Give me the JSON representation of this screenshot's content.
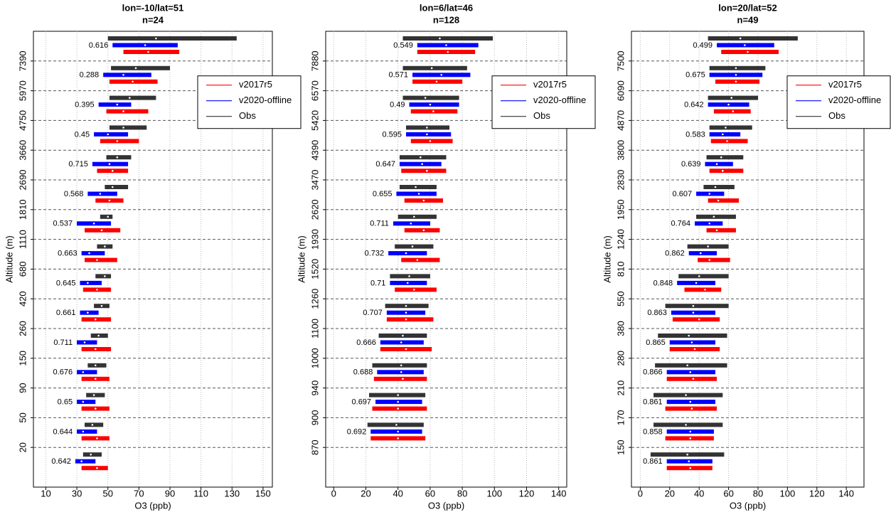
{
  "chart_data": [
    {
      "type": "range",
      "title": "lon=-10/lat=51",
      "subtitle": "n=24",
      "x_label": "O3 (ppb)",
      "y_label": "Altitude (m)",
      "xlim": [
        2,
        156
      ],
      "xticks": [
        10,
        30,
        50,
        70,
        90,
        110,
        130,
        150
      ],
      "grid": true,
      "legend": "upper right",
      "boundaries": [
        7390,
        5970,
        4750,
        3660,
        2690,
        1810,
        1110,
        680,
        420,
        260,
        150,
        90,
        50,
        20
      ],
      "series": [
        {
          "name": "v2017r5",
          "color": "#ff0000",
          "low": [
            60,
            51,
            49,
            45,
            43,
            42,
            35,
            35,
            34,
            33,
            33,
            33,
            33,
            33,
            33
          ],
          "median": [
            76,
            66,
            60,
            56,
            53,
            51,
            46,
            43,
            43,
            42,
            42,
            42,
            42,
            43,
            43
          ],
          "high": [
            96,
            82,
            76,
            70,
            63,
            60,
            58,
            56,
            52,
            52,
            52,
            51,
            51,
            51,
            50
          ]
        },
        {
          "name": "v2020-offline",
          "color": "#0000ff",
          "low": [
            53,
            47,
            44,
            41,
            40,
            37,
            30,
            33,
            32,
            32,
            30,
            30,
            30,
            30,
            29
          ],
          "median": [
            74,
            60,
            56,
            50,
            51,
            45,
            41,
            38,
            37,
            37,
            35,
            34,
            34,
            34,
            33
          ],
          "high": [
            95,
            78,
            65,
            63,
            63,
            56,
            52,
            48,
            46,
            44,
            43,
            43,
            42,
            43,
            42
          ]
        },
        {
          "name": "Obs",
          "color": "#333333",
          "low": [
            50,
            52,
            51,
            51,
            49,
            48,
            45,
            43,
            42,
            41,
            39,
            37,
            36,
            35,
            34
          ],
          "median": [
            81,
            68,
            64,
            60,
            56,
            53,
            50,
            48,
            48,
            46,
            44,
            42,
            41,
            40,
            39
          ],
          "high": [
            133,
            90,
            81,
            75,
            65,
            63,
            53,
            53,
            52,
            51,
            50,
            49,
            48,
            47,
            46
          ]
        }
      ],
      "correlations": {
        "values": [
          0.616,
          0.288,
          0.395,
          0.45,
          0.715,
          0.568,
          0.537,
          0.663,
          0.645,
          0.661,
          0.711,
          0.676,
          0.65,
          0.644,
          0.642
        ],
        "colors": [
          "#0000ff",
          "#0000ff",
          "#ff0000",
          "#0000ff",
          "#0000ff",
          "#0000ff",
          "#0000ff",
          "#0000ff",
          "#0000ff",
          "#0000ff",
          "#0000ff",
          "#0000ff",
          "#0000ff",
          "#0000ff",
          "#0000ff"
        ]
      }
    },
    {
      "type": "range",
      "title": "lon=6/lat=46",
      "subtitle": "n=128",
      "x_label": "O3 (ppb)",
      "y_label": "Altitude (m)",
      "xlim": [
        -5,
        145
      ],
      "xticks": [
        0,
        20,
        40,
        60,
        80,
        100,
        120,
        140
      ],
      "grid": true,
      "legend": "upper right",
      "boundaries": [
        7880,
        6570,
        5420,
        4390,
        3470,
        2620,
        1930,
        1520,
        1260,
        1100,
        1000,
        940,
        900,
        870
      ],
      "series": [
        {
          "name": "v2017r5",
          "color": "#ff0000",
          "low": [
            52,
            49,
            48,
            48,
            42,
            44,
            44,
            42,
            38,
            33,
            29,
            25,
            24,
            23
          ],
          "median": [
            71,
            64,
            62,
            60,
            58,
            56,
            56,
            52,
            50,
            45,
            45,
            43,
            40,
            40
          ],
          "high": [
            88,
            80,
            77,
            74,
            70,
            68,
            66,
            66,
            64,
            62,
            61,
            58,
            58,
            57
          ]
        },
        {
          "name": "v2020-offline",
          "color": "#0000ff",
          "low": [
            52,
            49,
            47,
            45,
            41,
            39,
            37,
            34,
            35,
            33,
            29,
            27,
            26,
            23
          ],
          "median": [
            70,
            67,
            60,
            58,
            55,
            53,
            48,
            45,
            46,
            45,
            42,
            42,
            40,
            40
          ],
          "high": [
            90,
            85,
            78,
            73,
            67,
            64,
            60,
            58,
            58,
            57,
            56,
            56,
            55,
            55
          ]
        },
        {
          "name": "Obs",
          "color": "#333333",
          "low": [
            43,
            43,
            43,
            45,
            41,
            41,
            40,
            38,
            35,
            32,
            28,
            24,
            22,
            21
          ],
          "median": [
            66,
            61,
            57,
            58,
            54,
            51,
            50,
            49,
            47,
            45,
            43,
            42,
            40,
            39
          ],
          "high": [
            99,
            83,
            78,
            72,
            70,
            64,
            64,
            62,
            60,
            59,
            58,
            58,
            57,
            56
          ]
        }
      ],
      "correlations": {
        "values": [
          0.549,
          0.571,
          0.49,
          0.595,
          0.647,
          0.655,
          0.711,
          0.732,
          0.71,
          0.707,
          0.666,
          0.688,
          0.697,
          0.692
        ],
        "colors": [
          "#0000ff",
          "#0000ff",
          "#0000ff",
          "#0000ff",
          "#0000ff",
          "#0000ff",
          "#0000ff",
          "#0000ff",
          "#0000ff",
          "#0000ff",
          "#0000ff",
          "#ff0000",
          "#ff0000",
          "#ff0000"
        ]
      }
    },
    {
      "type": "range",
      "title": "lon=20/lat=52",
      "subtitle": "n=49",
      "x_label": "O3 (ppb)",
      "y_label": "Altitude (m)",
      "xlim": [
        -6,
        152
      ],
      "xticks": [
        0,
        20,
        40,
        60,
        80,
        100,
        120,
        140
      ],
      "grid": true,
      "legend": "upper right",
      "boundaries": [
        7500,
        6090,
        4870,
        3800,
        2830,
        1950,
        1240,
        810,
        550,
        380,
        280,
        210,
        170,
        150
      ],
      "series": [
        {
          "name": "v2017r5",
          "color": "#ff0000",
          "low": [
            55,
            51,
            50,
            48,
            47,
            46,
            45,
            39,
            30,
            22,
            20,
            18,
            17,
            17,
            18
          ],
          "median": [
            73,
            65,
            63,
            59,
            56,
            53,
            52,
            47,
            44,
            40,
            37,
            36,
            35,
            34,
            34
          ],
          "high": [
            94,
            81,
            75,
            73,
            70,
            67,
            65,
            61,
            55,
            54,
            54,
            52,
            52,
            50,
            49
          ]
        },
        {
          "name": "v2020-offline",
          "color": "#0000ff",
          "low": [
            52,
            47,
            46,
            47,
            44,
            38,
            37,
            33,
            25,
            21,
            20,
            18,
            18,
            18,
            18
          ],
          "median": [
            71,
            65,
            60,
            56,
            52,
            47,
            47,
            41,
            38,
            36,
            35,
            34,
            34,
            34,
            33
          ],
          "high": [
            91,
            83,
            74,
            68,
            63,
            57,
            56,
            52,
            51,
            51,
            51,
            51,
            51,
            50,
            49
          ]
        },
        {
          "name": "Obs",
          "color": "#333333",
          "low": [
            46,
            47,
            46,
            47,
            45,
            43,
            38,
            32,
            26,
            17,
            12,
            10,
            9,
            9,
            7
          ],
          "median": [
            68,
            65,
            62,
            58,
            55,
            51,
            50,
            46,
            40,
            36,
            33,
            32,
            31,
            31,
            32
          ],
          "high": [
            107,
            85,
            80,
            76,
            70,
            64,
            65,
            60,
            60,
            60,
            59,
            59,
            56,
            56,
            57
          ]
        }
      ],
      "correlations": {
        "values": [
          0.499,
          0.675,
          0.642,
          0.583,
          0.639,
          0.607,
          0.764,
          0.862,
          0.848,
          0.863,
          0.865,
          0.866,
          0.861,
          0.858,
          0.861
        ],
        "colors": [
          "#0000ff",
          "#0000ff",
          "#0000ff",
          "#0000ff",
          "#0000ff",
          "#0000ff",
          "#0000ff",
          "#0000ff",
          "#0000ff",
          "#0000ff",
          "#0000ff",
          "#0000ff",
          "#0000ff",
          "#0000ff",
          "#0000ff"
        ]
      }
    }
  ]
}
